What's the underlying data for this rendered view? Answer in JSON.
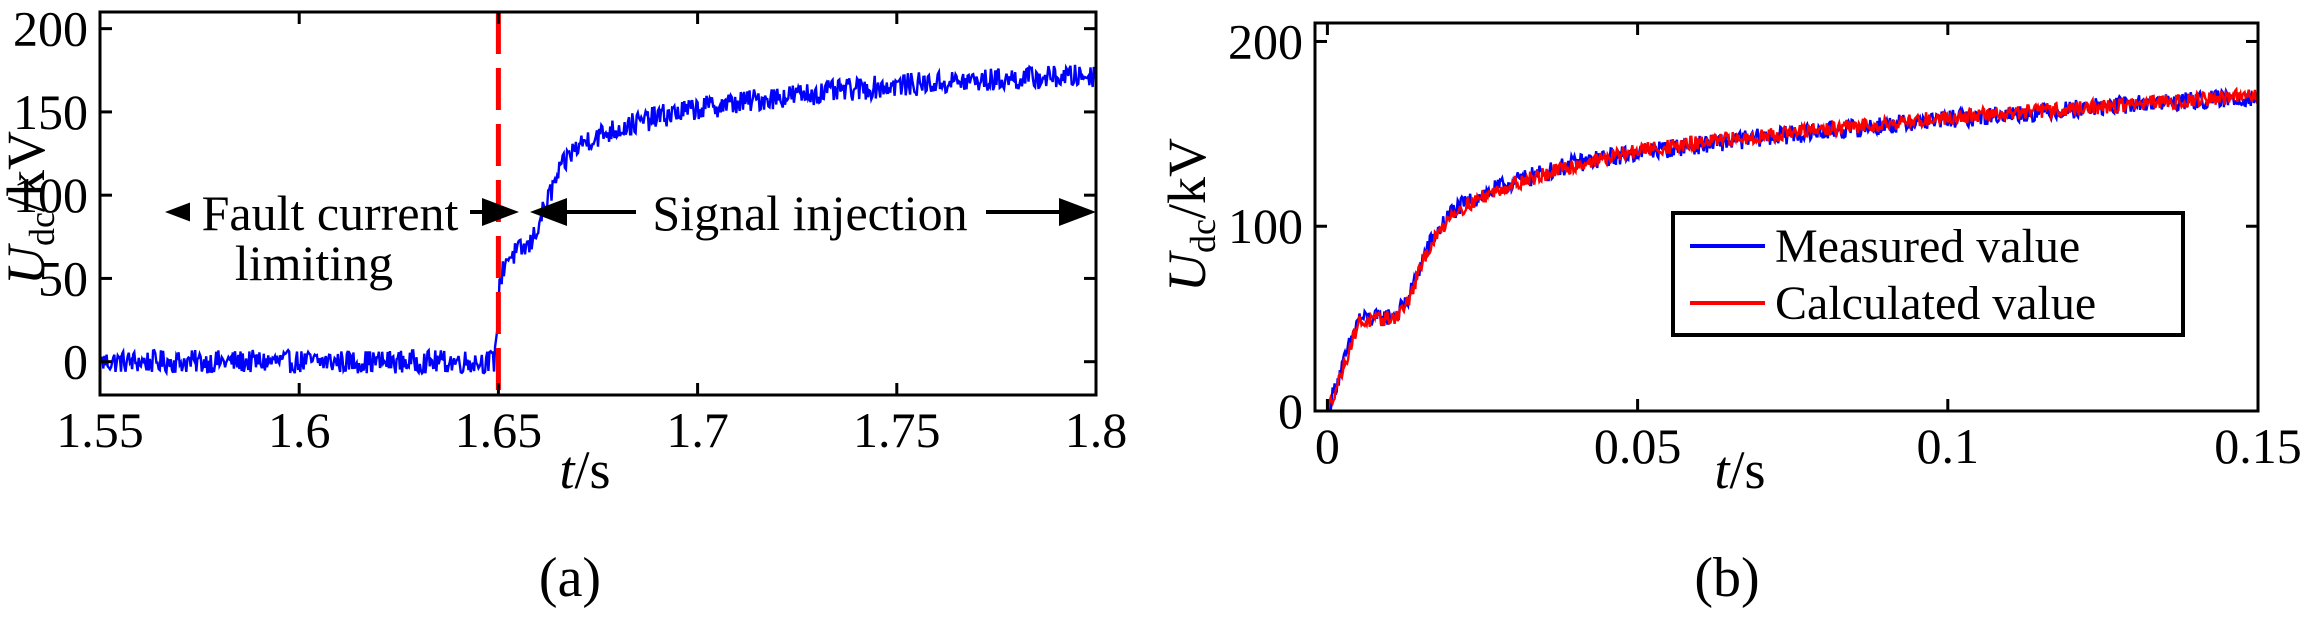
{
  "chart_data": [
    {
      "type": "line",
      "panel_label": "(a)",
      "xlabel": {
        "italic": "t",
        "rest": "/s"
      },
      "ylabel": {
        "italic": "U",
        "sub": "dc",
        "rest": "/kV"
      },
      "xlim": [
        1.55,
        1.8
      ],
      "ylim": [
        -20,
        210
      ],
      "xticks": [
        1.55,
        1.6,
        1.65,
        1.7,
        1.75,
        1.8
      ],
      "xtick_labels": [
        "1.55",
        "1.6",
        "1.65",
        "1.7",
        "1.75",
        "1.8"
      ],
      "yticks": [
        0,
        50,
        100,
        150,
        200
      ],
      "ytick_labels": [
        "0",
        "50",
        "100",
        "150",
        "200"
      ],
      "grid": false,
      "series": [
        {
          "color": "#0000ff",
          "noise": 7,
          "x": [
            1.55,
            1.6,
            1.649,
            1.6505,
            1.652,
            1.655,
            1.658,
            1.66,
            1.662,
            1.665,
            1.668,
            1.672,
            1.68,
            1.69,
            1.7,
            1.72,
            1.75,
            1.78,
            1.8
          ],
          "y": [
            0,
            0,
            0,
            50,
            62,
            66,
            70,
            82,
            95,
            112,
            125,
            133,
            140,
            147,
            152,
            159,
            166,
            170,
            172
          ]
        }
      ],
      "vline": {
        "x": 1.65,
        "color": "#ff0000",
        "dashed": true
      },
      "annotations": {
        "left_line1": "Fault current",
        "left_line2": "limiting",
        "right": "Signal injection"
      }
    },
    {
      "type": "line",
      "panel_label": "(b)",
      "xlabel": {
        "italic": "t",
        "rest": "/s"
      },
      "ylabel": {
        "italic": "U",
        "sub": "dc",
        "rest": "/kV"
      },
      "xlim": [
        -0.002,
        0.15
      ],
      "ylim": [
        0,
        210
      ],
      "xticks": [
        0,
        0.05,
        0.1,
        0.15
      ],
      "xtick_labels": [
        "0",
        "0.05",
        "0.1",
        "0.15"
      ],
      "yticks": [
        0,
        100,
        200
      ],
      "ytick_labels": [
        "0",
        "100",
        "200"
      ],
      "grid": false,
      "legend": "right",
      "series": [
        {
          "name": "Measured value",
          "color": "#0000ff",
          "noise": 5,
          "x": [
            0,
            0.002,
            0.004,
            0.005,
            0.008,
            0.011,
            0.013,
            0.016,
            0.02,
            0.025,
            0.03,
            0.04,
            0.05,
            0.07,
            0.1,
            0.13,
            0.15
          ],
          "y": [
            0,
            20,
            40,
            50,
            50,
            52,
            60,
            88,
            108,
            117,
            124,
            134,
            140,
            148,
            158,
            166,
            170
          ]
        },
        {
          "name": "Calculated value",
          "color": "#ff0000",
          "noise": 4,
          "x": [
            0,
            0.002,
            0.004,
            0.005,
            0.008,
            0.011,
            0.013,
            0.016,
            0.02,
            0.025,
            0.03,
            0.04,
            0.05,
            0.07,
            0.1,
            0.13,
            0.15
          ],
          "y": [
            0,
            18,
            38,
            48,
            49,
            51,
            59,
            86,
            107,
            116,
            123,
            133,
            141,
            149,
            159,
            166,
            171
          ]
        }
      ]
    }
  ]
}
